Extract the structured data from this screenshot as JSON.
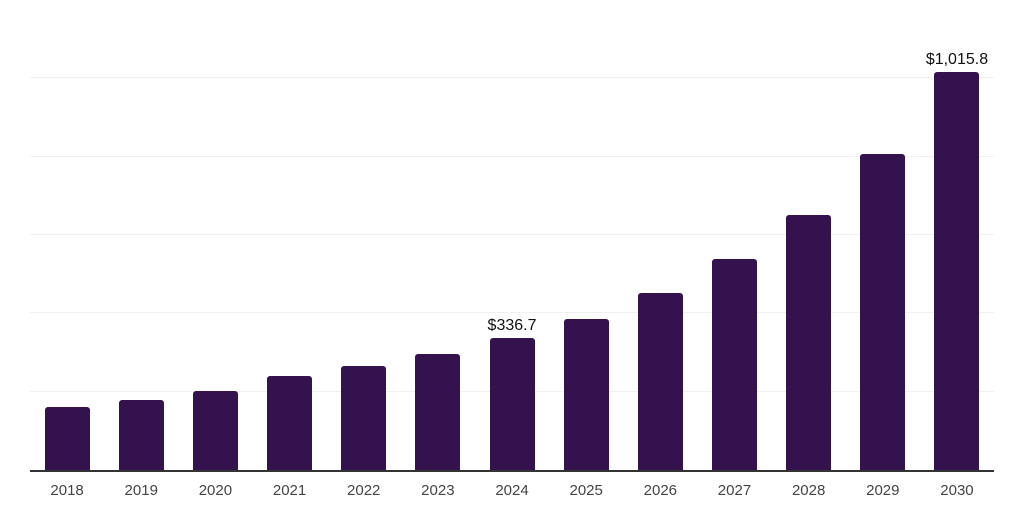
{
  "chart_data": {
    "type": "bar",
    "title": "",
    "xlabel": "",
    "ylabel": "",
    "categories": [
      "2018",
      "2019",
      "2020",
      "2021",
      "2022",
      "2023",
      "2024",
      "2025",
      "2026",
      "2027",
      "2028",
      "2029",
      "2030"
    ],
    "values": [
      161,
      179,
      203,
      241,
      266,
      296,
      336.7,
      386,
      452,
      538,
      651,
      806,
      1015.8
    ],
    "value_labels": {
      "2024": "$336.7",
      "2030": "$1,015.8"
    },
    "ylim": [
      0,
      1200
    ],
    "gridline_interval": 200,
    "grid": "horizontal",
    "legend": "none",
    "y_axis_tick_labels_visible": false,
    "colors": {
      "bar": "#34124d",
      "gridline": "#f0f0f0",
      "axis_line": "#333333",
      "x_tick_label": "#444444",
      "value_label": "#111111",
      "background": "#ffffff"
    }
  }
}
